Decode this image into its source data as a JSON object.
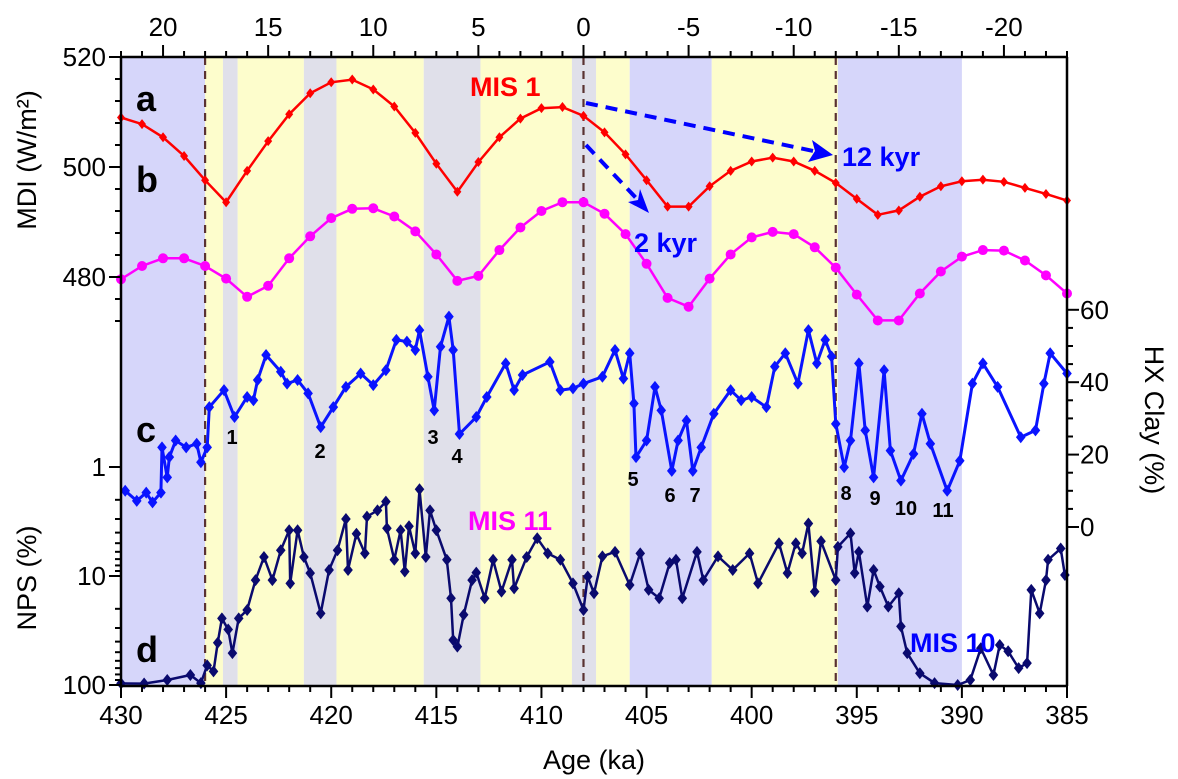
{
  "chart_data": {
    "type": "line",
    "xlabel": "Age (ka)",
    "xlim": [
      430,
      385
    ],
    "x_ticks": [
      "430",
      "425",
      "420",
      "415",
      "410",
      "405",
      "400",
      "395",
      "390",
      "385"
    ],
    "top_axis": {
      "ticks": [
        "20",
        "15",
        "10",
        "5",
        "0",
        "-5",
        "-10",
        "-15",
        "-20"
      ],
      "relation": "top value = age - 408"
    },
    "left_axis_mdi": {
      "label": "MDI (W/m²)",
      "ticks": [
        "520",
        "500",
        "480"
      ],
      "range": [
        472,
        520
      ]
    },
    "left_axis_nps": {
      "label": "NPS (%)",
      "ticks": [
        "1",
        "10",
        "100"
      ],
      "scale": "log",
      "inverted": true,
      "range": [
        1,
        100
      ]
    },
    "right_axis_hx": {
      "label": "HX Clay (%)",
      "ticks": [
        "60",
        "40",
        "20",
        "0"
      ],
      "range": [
        0,
        60
      ]
    },
    "panel_letters": [
      "a",
      "b",
      "c",
      "d"
    ],
    "annotations": {
      "mis1": "MIS 1",
      "mis11": "MIS 11",
      "mis10": "MIS 10",
      "arrow_long": "12 kyr",
      "arrow_short": "2 kyr"
    },
    "event_numbers": [
      "1",
      "2",
      "3",
      "4",
      "5",
      "6",
      "7",
      "8",
      "9",
      "10",
      "11"
    ],
    "dashed_lines_age": [
      426,
      408,
      396
    ],
    "bands": [
      {
        "from": 430,
        "to": 426,
        "color": "#d6d6fa"
      },
      {
        "from": 426,
        "to": 425.15,
        "color": "#fdfdcc"
      },
      {
        "from": 425.15,
        "to": 424.45,
        "color": "#e0e0ea"
      },
      {
        "from": 424.45,
        "to": 421.3,
        "color": "#fdfdcc"
      },
      {
        "from": 421.3,
        "to": 419.75,
        "color": "#e0e0ea"
      },
      {
        "from": 419.75,
        "to": 415.6,
        "color": "#fdfdcc"
      },
      {
        "from": 415.6,
        "to": 412.9,
        "color": "#e0e0ea"
      },
      {
        "from": 412.9,
        "to": 408.55,
        "color": "#fdfdcc"
      },
      {
        "from": 408.55,
        "to": 407.4,
        "color": "#e0e0ea"
      },
      {
        "from": 407.4,
        "to": 405.8,
        "color": "#fdfdcc"
      },
      {
        "from": 405.8,
        "to": 401.9,
        "color": "#d6d6fa"
      },
      {
        "from": 401.9,
        "to": 395.9,
        "color": "#fdfdcc"
      },
      {
        "from": 395.9,
        "to": 390.0,
        "color": "#d6d6fa"
      }
    ],
    "series": [
      {
        "name": "a",
        "axis": "mdi",
        "color": "#ff0000",
        "marker": "diamond",
        "x": [
          430,
          429,
          428,
          427,
          426,
          425,
          424,
          423,
          422,
          421,
          420,
          419,
          418,
          417,
          416,
          415,
          414,
          413,
          412,
          411,
          410,
          409,
          408,
          407,
          406,
          405,
          404,
          403,
          402,
          401,
          400,
          399,
          398,
          397,
          396,
          395,
          394,
          393,
          392,
          391,
          390,
          389,
          388,
          387,
          386,
          385
        ],
        "y": [
          509.0,
          507.8,
          505.4,
          502.0,
          497.6,
          493.6,
          499.3,
          504.7,
          509.6,
          513.4,
          515.4,
          515.9,
          514.1,
          511.0,
          506.2,
          500.6,
          495.5,
          500.9,
          505.4,
          508.8,
          510.7,
          510.9,
          509.3,
          506.3,
          502.3,
          497.6,
          492.8,
          492.8,
          496.5,
          499.3,
          501.0,
          501.7,
          501.0,
          499.3,
          497.1,
          494.2,
          491.3,
          492.1,
          494.6,
          496.5,
          497.4,
          497.7,
          497.3,
          496.2,
          495.1,
          493.9
        ]
      },
      {
        "name": "b",
        "axis": "mdi",
        "color": "#ff00ff",
        "marker": "circle",
        "x": [
          430,
          429,
          428,
          427,
          426,
          425,
          424,
          423,
          422,
          421,
          420,
          419,
          418,
          417,
          416,
          415,
          414,
          413,
          412,
          411,
          410,
          409,
          408,
          407,
          406,
          405,
          404,
          403,
          402,
          401,
          400,
          399,
          398,
          397,
          396,
          395,
          394,
          393,
          392,
          391,
          390,
          389,
          388,
          387,
          386,
          385
        ],
        "y": [
          479.6,
          482.0,
          483.4,
          483.4,
          482.0,
          479.7,
          476.4,
          478.4,
          483.4,
          487.4,
          490.7,
          492.4,
          492.5,
          491.0,
          488.3,
          484.1,
          479.3,
          480.2,
          484.9,
          489.0,
          492.0,
          493.6,
          493.6,
          491.5,
          487.8,
          482.4,
          476.2,
          474.6,
          479.7,
          484.1,
          487.2,
          488.2,
          487.8,
          485.4,
          481.7,
          476.8,
          472.1,
          472.1,
          477.0,
          481.0,
          483.7,
          484.9,
          484.8,
          483.0,
          480.3,
          477.0
        ]
      },
      {
        "name": "c",
        "axis": "hx",
        "color": "#0a14ff",
        "marker": "diamond",
        "x": [
          429.8,
          429.25,
          428.8,
          428.5,
          428.1,
          428.05,
          427.8,
          427.7,
          427.4,
          426.9,
          426.4,
          426.2,
          425.9,
          425.8,
          425.1,
          424.6,
          424.0,
          423.7,
          423.5,
          423.1,
          422.4,
          422.1,
          421.6,
          421.1,
          420.5,
          419.9,
          419.3,
          418.6,
          418.0,
          417.4,
          416.9,
          416.4,
          416.0,
          415.8,
          415.4,
          415.1,
          414.8,
          414.4,
          414.2,
          413.9,
          413.1,
          412.6,
          411.7,
          411.3,
          410.9,
          409.6,
          409.1,
          408.5,
          408,
          407.1,
          406.5,
          406.1,
          405.8,
          405.6,
          405.5,
          405.0,
          404.6,
          404.3,
          403.8,
          403.5,
          403.1,
          402.8,
          402.4,
          401.8,
          401.0,
          400.5,
          400.0,
          399.3,
          398.9,
          398.4,
          397.8,
          397.3,
          396.9,
          396.5,
          396.2,
          396.0,
          395.6,
          395.3,
          394.9,
          394.6,
          394.2,
          393.7,
          393.4,
          392.9,
          392.3,
          391.9,
          391.5,
          390.7,
          390.1,
          389.5,
          389.0,
          388.3,
          387.2,
          386.5,
          386.1,
          385.8,
          385.0
        ],
        "y": [
          10,
          7.2,
          9.5,
          6.8,
          9.5,
          22,
          13.7,
          19.3,
          23.9,
          22,
          23,
          17.9,
          22,
          33.1,
          37.8,
          30.4,
          35.9,
          35,
          40.6,
          47.5,
          42.9,
          39.6,
          40.6,
          36.9,
          27.6,
          33.1,
          38.7,
          42.4,
          39.2,
          43.3,
          51.7,
          51.2,
          48.9,
          54.4,
          41.5,
          32.2,
          49.8,
          58.1,
          48.9,
          25.7,
          30.4,
          35.9,
          45.2,
          37.8,
          42,
          45.6,
          37.8,
          38.3,
          39.6,
          41.5,
          48.9,
          41,
          48,
          34.1,
          19.3,
          23.9,
          38.7,
          32.2,
          15.5,
          23.9,
          29.4,
          15.5,
          22,
          31.3,
          37.8,
          35,
          35.9,
          33.1,
          44.3,
          48,
          39.6,
          54.4,
          45.2,
          51.7,
          47.1,
          28.5,
          16.5,
          23.9,
          45.2,
          26.7,
          13.7,
          43.3,
          21.1,
          12.8,
          20.2,
          31.3,
          23,
          10,
          18.3,
          39.6,
          45.2,
          38.7,
          24.8,
          26.7,
          39.6,
          48,
          42.4
        ]
      },
      {
        "name": "d",
        "axis": "nps",
        "color": "#0a0a6e",
        "marker": "diamond",
        "x": [
          430,
          428.9,
          427.8,
          426.7,
          426.2,
          425.9,
          425.6,
          425.4,
          425.2,
          424.9,
          424.7,
          424.4,
          424.0,
          423.6,
          423.2,
          422.8,
          422.4,
          422.0,
          421.95,
          421.6,
          421.3,
          421.0,
          420.5,
          420.1,
          419.7,
          419.3,
          419.2,
          418.8,
          418.4,
          418.3,
          417.8,
          417.4,
          417.35,
          417.0,
          416.7,
          416.5,
          416.3,
          416.0,
          415.8,
          415.5,
          415.3,
          415.0,
          414.5,
          414.3,
          414.2,
          414.0,
          413.7,
          413.3,
          413.1,
          412.7,
          412.3,
          411.9,
          411.4,
          411.3,
          410.7,
          410.2,
          409.7,
          409.1,
          408.5,
          408,
          407.8,
          407.5,
          407.1,
          406.5,
          405.8,
          405.3,
          404.9,
          404.4,
          403.9,
          403.6,
          403.3,
          402.6,
          402.3,
          401.6,
          400.9,
          400.1,
          399.7,
          398.7,
          398.3,
          397.9,
          397.6,
          397.3,
          397.0,
          396.7,
          396.0,
          395.9,
          395.3,
          395.1,
          394.9,
          394.5,
          394.2,
          393.9,
          393.5,
          393.0,
          392.9,
          392.6,
          392.0,
          391.3,
          390.2,
          389.6,
          389.1,
          388.5,
          388.2,
          387.8,
          387.3,
          386.9,
          386.7,
          386.3,
          386.0,
          385.9,
          385.3,
          385.1
        ],
        "y": [
          96.6,
          97,
          90,
          81,
          96,
          66,
          75,
          41,
          24.5,
          31,
          51,
          24.5,
          20.5,
          10.9,
          6.7,
          10.9,
          5.8,
          3.8,
          11.7,
          3.8,
          6.7,
          9.4,
          22,
          8.8,
          5.8,
          3.0,
          8.8,
          4.1,
          6.2,
          2.85,
          2.5,
          2.08,
          3.65,
          7.1,
          3.8,
          9.1,
          3.5,
          6.2,
          1.6,
          6.7,
          2.5,
          3.8,
          7.1,
          16,
          38.7,
          44.5,
          22.7,
          10.9,
          9.3,
          16,
          7.1,
          13.9,
          7.1,
          13,
          6.7,
          4.5,
          6.2,
          7.1,
          11.7,
          20.5,
          10.1,
          14.4,
          6.6,
          6.0,
          12.1,
          6.2,
          13.4,
          16,
          7.6,
          7.1,
          16,
          6.0,
          10.9,
          6.6,
          8.8,
          6.2,
          11.7,
          5.0,
          9.4,
          5.0,
          6.2,
          3.3,
          13.9,
          4.8,
          10.9,
          5.4,
          4.06,
          9.4,
          6.0,
          19.1,
          8.8,
          12.5,
          19.1,
          14.4,
          29,
          51,
          78,
          96,
          100,
          90,
          46,
          81,
          43,
          49,
          70,
          63,
          13.4,
          22,
          10.9,
          7.1,
          5.6,
          9.8
        ]
      }
    ]
  }
}
